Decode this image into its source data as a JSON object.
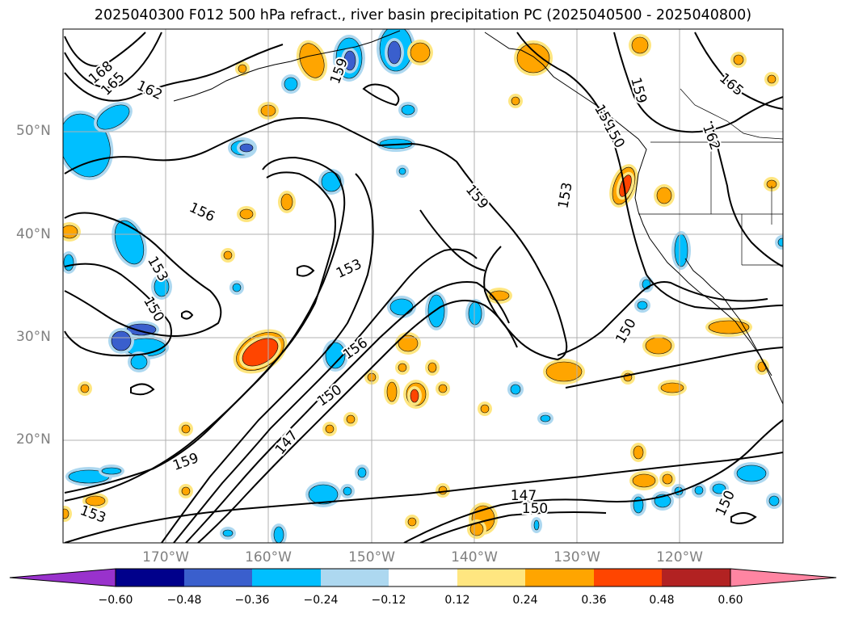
{
  "title": "2025040300 F012 500 hPa refract., river basin precipitation PC (2025040500 - 2025040800)",
  "axes": {
    "lat_labels": [
      "50°N",
      "40°N",
      "30°N",
      "20°N"
    ],
    "lon_labels": [
      "170°W",
      "160°W",
      "150°W",
      "140°W",
      "130°W",
      "120°W"
    ]
  },
  "contour_labels": [
    "168",
    "165",
    "162",
    "159",
    "156",
    "153",
    "150",
    "159",
    "153",
    "150",
    "156",
    "147",
    "150",
    "159",
    "153",
    "150",
    "147",
    "153",
    "159",
    "165",
    "162",
    "150",
    "159",
    "150"
  ],
  "colorbar": {
    "ticks": [
      "−0.60",
      "−0.48",
      "−0.36",
      "−0.24",
      "−0.12",
      "0.12",
      "0.24",
      "0.36",
      "0.48",
      "0.60"
    ],
    "colors": [
      "#9932cc",
      "#00008b",
      "#3a5fcd",
      "#00bfff",
      "#add8f0",
      "#ffffff",
      "#ffe680",
      "#ffa500",
      "#ff4500",
      "#b22222",
      "#ff85a2"
    ]
  },
  "shading_colors": {
    "neg_light": "#add8f0",
    "neg_mid": "#00bfff",
    "neg_dark": "#3a5fcd",
    "neg_darker": "#00008b",
    "neg_purple": "#9932cc",
    "pos_light": "#ffe680",
    "pos_mid": "#ffa500",
    "pos_dark": "#ff4500"
  }
}
